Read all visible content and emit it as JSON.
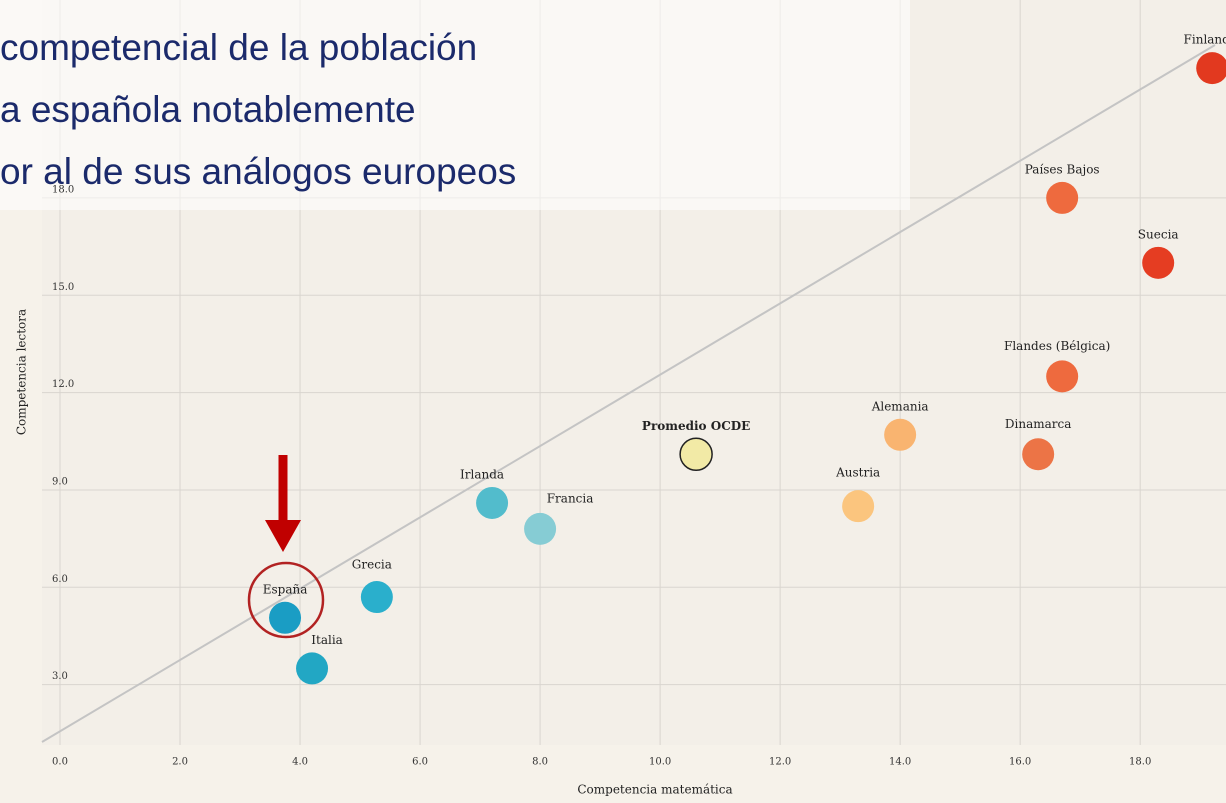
{
  "chart_data": {
    "type": "scatter",
    "title_lines": [
      "competencial de la población",
      "a española notablemente",
      "or al de sus análogos europeos"
    ],
    "x_label": "Competencia matemática",
    "y_label": "Competencia lectora",
    "xlim": [
      -0.3,
      19.43
    ],
    "ylim": [
      1.14,
      24.1
    ],
    "xticks": [
      {
        "value": 0,
        "label": "0.0"
      },
      {
        "value": 2,
        "label": "2.0"
      },
      {
        "value": 4,
        "label": "4.0"
      },
      {
        "value": 6,
        "label": "6.0"
      },
      {
        "value": 8,
        "label": "8.0"
      },
      {
        "value": 10,
        "label": "10.0"
      },
      {
        "value": 12,
        "label": "12.0"
      },
      {
        "value": 14,
        "label": "14.0"
      },
      {
        "value": 16,
        "label": "16.0"
      },
      {
        "value": 18,
        "label": "18.0"
      }
    ],
    "yticks": [
      {
        "value": 3,
        "label": "3.0"
      },
      {
        "value": 6,
        "label": "6.0"
      },
      {
        "value": 9,
        "label": "9.0"
      },
      {
        "value": 12,
        "label": "12.0"
      },
      {
        "value": 15,
        "label": "15.0"
      },
      {
        "value": 18,
        "label": "18.0"
      }
    ],
    "grid": true,
    "points": [
      {
        "name": "España",
        "x": 3.75,
        "y": 5.06,
        "color": "#1a9dc4"
      },
      {
        "name": "Italia",
        "x": 4.2,
        "y": 3.5,
        "color": "#22a7c4"
      },
      {
        "name": "Grecia",
        "x": 5.28,
        "y": 5.7,
        "color": "#2aafcc"
      },
      {
        "name": "Irlanda",
        "x": 7.2,
        "y": 8.6,
        "color": "#52bccc"
      },
      {
        "name": "Francia",
        "x": 8.0,
        "y": 7.8,
        "color": "#86ccd4"
      },
      {
        "name": "Promedio OCDE",
        "x": 10.6,
        "y": 10.1,
        "color": "#f2eaa6"
      },
      {
        "name": "Austria",
        "x": 13.3,
        "y": 8.5,
        "color": "#fbc57e"
      },
      {
        "name": "Alemania",
        "x": 14.0,
        "y": 10.7,
        "color": "#f9b470"
      },
      {
        "name": "Dinamarca",
        "x": 16.3,
        "y": 10.1,
        "color": "#ec7446"
      },
      {
        "name": "Flandes (Bélgica)",
        "x": 16.7,
        "y": 12.5,
        "color": "#ee6a3e"
      },
      {
        "name": "Suecia",
        "x": 18.3,
        "y": 16.0,
        "color": "#e53d22"
      },
      {
        "name": "Países Bajos",
        "x": 16.7,
        "y": 18.0,
        "color": "#ee6a3e"
      },
      {
        "name": "Finlandia",
        "x": 19.2,
        "y": 22.0,
        "color": "#e2391f"
      }
    ]
  }
}
